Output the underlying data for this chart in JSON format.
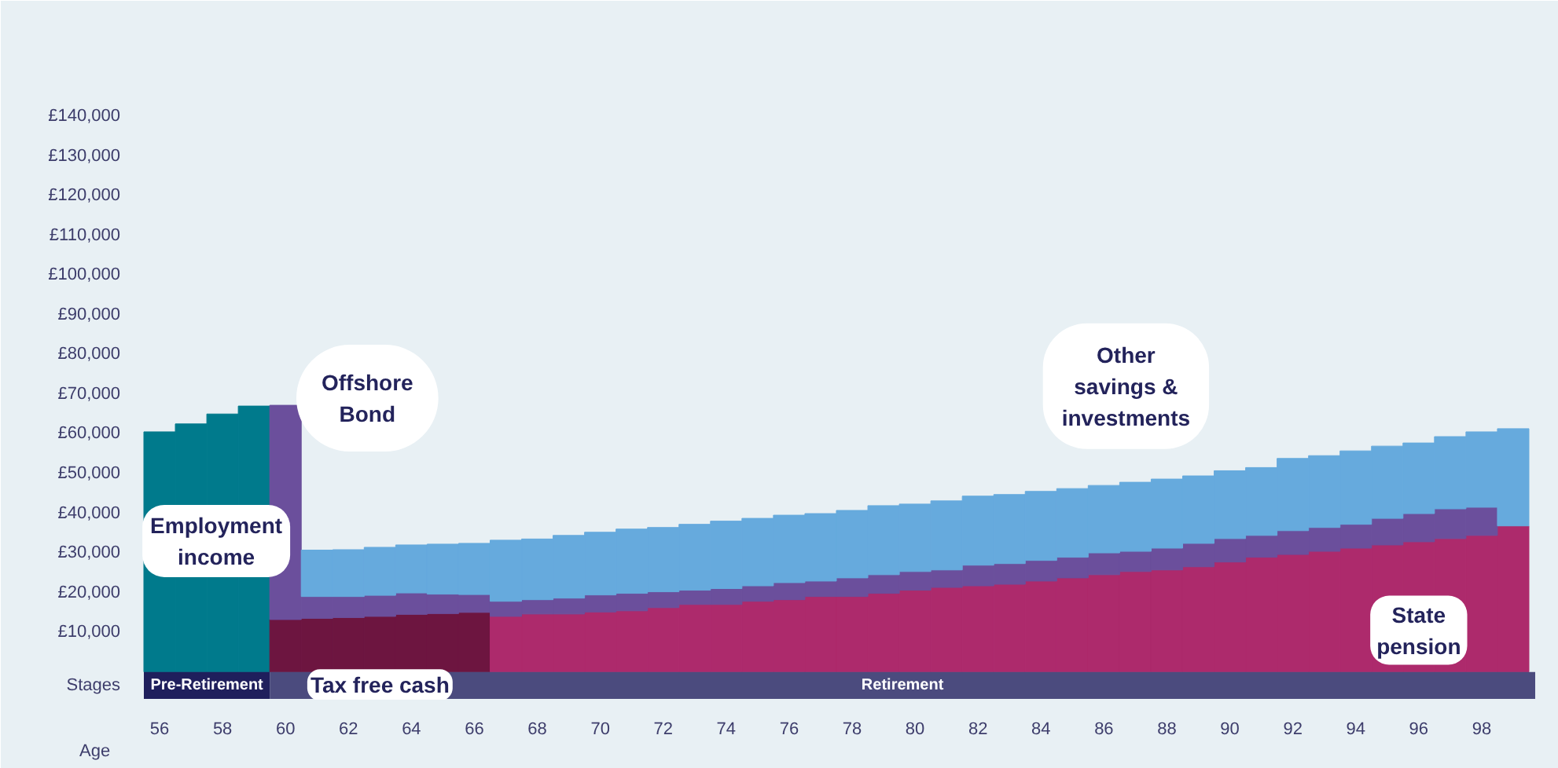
{
  "chart_data": {
    "type": "bar",
    "stacked": true,
    "xlabel": "Age",
    "x": [
      56,
      57,
      58,
      59,
      60,
      61,
      62,
      63,
      64,
      65,
      66,
      67,
      68,
      69,
      70,
      71,
      72,
      73,
      74,
      75,
      76,
      77,
      78,
      79,
      80,
      81,
      82,
      83,
      84,
      85,
      86,
      87,
      88,
      89,
      90,
      91,
      92,
      93,
      94,
      95,
      96,
      97,
      98,
      99
    ],
    "series": [
      {
        "name": "Employment income",
        "color": "#007a8c",
        "values": [
          60500,
          62500,
          65000,
          67000,
          null,
          null,
          null,
          null,
          null,
          null,
          null,
          null,
          null,
          null,
          null,
          null,
          null,
          null,
          null,
          null,
          null,
          null,
          null,
          null,
          null,
          null,
          null,
          null,
          null,
          null,
          null,
          null,
          null,
          null,
          null,
          null,
          null,
          null,
          null,
          null,
          null,
          null,
          null,
          null
        ]
      },
      {
        "name": "Tax free cash",
        "color": "#6d1540",
        "values": [
          null,
          null,
          null,
          null,
          13200,
          13500,
          13700,
          14000,
          14500,
          14700,
          15000,
          null,
          null,
          null,
          null,
          null,
          null,
          null,
          null,
          null,
          null,
          null,
          null,
          null,
          null,
          null,
          null,
          null,
          null,
          null,
          null,
          null,
          null,
          null,
          null,
          null,
          null,
          null,
          null,
          null,
          null,
          null,
          null,
          null
        ]
      },
      {
        "name": "State pension",
        "color": "#ad2a6c",
        "values": [
          null,
          null,
          null,
          null,
          null,
          null,
          null,
          null,
          null,
          null,
          null,
          14000,
          14600,
          14600,
          15100,
          15400,
          16200,
          17000,
          17000,
          17800,
          18200,
          19000,
          19000,
          19800,
          20600,
          21300,
          21700,
          22100,
          22900,
          23700,
          24500,
          25300,
          25700,
          26500,
          27700,
          28900,
          29600,
          30400,
          31200,
          32000,
          32800,
          33600,
          34400,
          36800
        ]
      },
      {
        "name": "Offshore Bond",
        "color": "#6b4f9c",
        "values": [
          null,
          null,
          null,
          null,
          54000,
          5500,
          5300,
          5300,
          5400,
          4900,
          4500,
          3800,
          3600,
          4000,
          4300,
          4400,
          4000,
          3600,
          4000,
          3900,
          4300,
          3900,
          4700,
          4700,
          4700,
          4400,
          5200,
          5200,
          5200,
          5200,
          5500,
          5100,
          5500,
          5900,
          5900,
          5500,
          6000,
          6000,
          6000,
          6700,
          7100,
          7500,
          7100,
          null
        ]
      },
      {
        "name": "Other savings & investments",
        "color": "#66aadd",
        "values": [
          null,
          null,
          null,
          null,
          null,
          11700,
          11800,
          12100,
          12100,
          12600,
          12900,
          15400,
          15300,
          15800,
          15800,
          16200,
          16200,
          16600,
          17000,
          17000,
          17000,
          17000,
          17000,
          17400,
          17000,
          17400,
          17400,
          17400,
          17400,
          17300,
          17000,
          17400,
          17400,
          17000,
          17100,
          17100,
          18200,
          18100,
          18500,
          18200,
          17800,
          18200,
          19000,
          24500
        ]
      }
    ],
    "xlim": [
      55.45,
      99.7
    ],
    "xticks": [
      56,
      58,
      60,
      62,
      64,
      66,
      68,
      70,
      72,
      74,
      76,
      78,
      80,
      82,
      84,
      86,
      88,
      90,
      92,
      94,
      96,
      98
    ],
    "ylim": [
      -7000,
      145000
    ],
    "yticks": [
      {
        "value": -3500,
        "label": "Stages"
      },
      {
        "value": 10000,
        "label": "£10,000"
      },
      {
        "value": 20000,
        "label": "£20,000"
      },
      {
        "value": 30000,
        "label": "£30,000"
      },
      {
        "value": 40000,
        "label": "£40,000"
      },
      {
        "value": 50000,
        "label": "£50,000"
      },
      {
        "value": 60000,
        "label": "£60,000"
      },
      {
        "value": 70000,
        "label": "£70,000"
      },
      {
        "value": 80000,
        "label": "£80,000"
      },
      {
        "value": 90000,
        "label": "£90,000"
      },
      {
        "value": 100000,
        "label": "£100,000"
      },
      {
        "value": 110000,
        "label": "£110,000"
      },
      {
        "value": 120000,
        "label": "£120,000"
      },
      {
        "value": 130000,
        "label": "£130,000"
      },
      {
        "value": 140000,
        "label": "£140,000"
      }
    ],
    "bands": [
      {
        "axis": "x",
        "from": 55.5,
        "to": 59.5,
        "label": "Pre-Retirement",
        "color": "#1f1f5c"
      },
      {
        "axis": "x",
        "from": 59.5,
        "to": 99.7,
        "label": "Retirement",
        "color": "#4b4b7e"
      }
    ],
    "grid": false
  }
}
